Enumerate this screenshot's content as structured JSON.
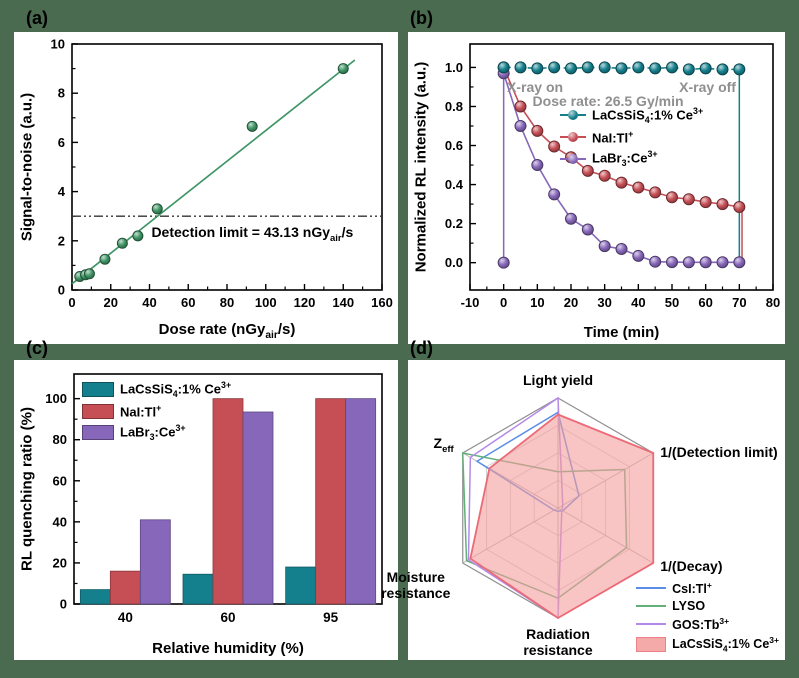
{
  "panel_labels": {
    "a": "(a)",
    "b": "(b)",
    "c": "(c)",
    "d": "(d)"
  },
  "colors": {
    "frame": "#4a6b50",
    "teal": "#15808d",
    "red": "#c54f55",
    "purple": "#8767ba",
    "fit_green": "#3f9565",
    "annotation_gray": "#8f8f8f",
    "radar_blue": "#5b8ee6",
    "radar_green": "#62b078",
    "radar_violet": "#b48ae8",
    "pink_fill": "#f49c9c",
    "pink_edge": "#ec6a76"
  },
  "chart_data": [
    {
      "id": "a",
      "type": "scatter",
      "xlabel": "Dose rate (nGy_{air}/s)",
      "ylabel": "Signal-to-noise (a.u.)",
      "xlim": [
        0,
        160
      ],
      "ylim": [
        0,
        10
      ],
      "xticks": [
        "0",
        "20",
        "40",
        "60",
        "80",
        "100",
        "120",
        "140",
        "160"
      ],
      "yticks": [
        "0",
        "2",
        "4",
        "6",
        "8",
        "10"
      ],
      "points": [
        [
          4,
          0.55
        ],
        [
          7,
          0.62
        ],
        [
          9,
          0.66
        ],
        [
          17,
          1.25
        ],
        [
          26,
          1.9
        ],
        [
          34,
          2.2
        ],
        [
          44,
          3.3
        ],
        [
          93,
          6.65
        ],
        [
          140,
          9.0
        ]
      ],
      "fit_line": {
        "x1": 0,
        "y1": 0.25,
        "x2": 146,
        "y2": 9.35
      },
      "detection_line_y": 3,
      "annotation": {
        "text": "Detection limit = 43.13 nGy_{air}/s",
        "x": 41,
        "y": 2.3
      }
    },
    {
      "id": "b",
      "type": "decay",
      "xlabel": "Time (min)",
      "ylabel": "Normalized RL intensity (a.u.)",
      "xlim": [
        -10,
        80
      ],
      "ylim": [
        -0.14,
        1.12
      ],
      "xticks": [
        "-10",
        "0",
        "10",
        "20",
        "30",
        "40",
        "50",
        "60",
        "70",
        "80"
      ],
      "yticks": [
        "0.0",
        "0.2",
        "0.4",
        "0.6",
        "0.8",
        "1.0"
      ],
      "x": [
        0,
        5,
        10,
        15,
        20,
        25,
        30,
        35,
        40,
        45,
        50,
        55,
        60,
        65,
        70
      ],
      "series": [
        {
          "name": "LaCsSiS_{4}:1% Ce^{3+}",
          "color_key": "teal",
          "dashed": true,
          "values": [
            1.0,
            1.0,
            0.995,
            1.0,
            0.995,
            1.0,
            1.0,
            0.995,
            1.0,
            0.995,
            1.0,
            0.99,
            0.995,
            0.99,
            0.99
          ]
        },
        {
          "name": "NaI:Tl^{+}",
          "color_key": "red",
          "dashed": false,
          "values": [
            1.0,
            0.8,
            0.675,
            0.595,
            0.54,
            0.47,
            0.445,
            0.41,
            0.385,
            0.36,
            0.335,
            0.325,
            0.31,
            0.3,
            0.285
          ]
        },
        {
          "name": "LaBr_{3}:Ce^{3+}",
          "color_key": "purple",
          "dashed": false,
          "values": [
            0.97,
            0.7,
            0.5,
            0.35,
            0.225,
            0.17,
            0.085,
            0.07,
            0.035,
            0.005,
            0.003,
            0.002,
            0.002,
            0.002,
            0.002
          ]
        }
      ],
      "extra_markers": [
        {
          "x": 0,
          "y": 0.0,
          "color_key": "purple"
        }
      ],
      "vlines": [
        {
          "x": 0,
          "y1": 0,
          "y2": 0.97,
          "color_key": "purple"
        },
        {
          "x": 70,
          "y1": 0,
          "y2": 0.99,
          "color_key": "teal"
        },
        {
          "x": 70.8,
          "y1": 0,
          "y2": 0.285,
          "color_key": "red"
        }
      ],
      "annotations": [
        {
          "text": "X-ray on",
          "x": 1,
          "y": 0.895,
          "anchor": "start"
        },
        {
          "text": "X-ray off",
          "x": 69,
          "y": 0.895,
          "anchor": "end"
        },
        {
          "text": "Dose rate: 26.5 Gy/min",
          "x": 31,
          "y": 0.825,
          "anchor": "middle"
        }
      ],
      "legend_pos": {
        "left": 152,
        "top": 74
      }
    },
    {
      "id": "c",
      "type": "bar",
      "xlabel": "Relative humidity (%)",
      "ylabel": "RL quenching ratio (%)",
      "categories": [
        "40",
        "60",
        "95"
      ],
      "ylim": [
        0,
        112
      ],
      "yticks": [
        "0",
        "20",
        "40",
        "60",
        "80",
        "100"
      ],
      "series": [
        {
          "name": "LaCsSiS_{4}:1% Ce^{3+}",
          "color_key": "teal",
          "values": [
            7,
            14.5,
            18
          ]
        },
        {
          "name": "NaI:Tl^{+}",
          "color_key": "red",
          "values": [
            16,
            100,
            100
          ]
        },
        {
          "name": "LaBr_{3}:Ce^{3+}",
          "color_key": "purple",
          "values": [
            41,
            93.5,
            100
          ]
        }
      ],
      "legend_pos": {
        "left": 68,
        "top": 20
      }
    },
    {
      "id": "d",
      "type": "radar",
      "axes": [
        "Light yield",
        "1/(Detection limit)",
        "1/(Decay)",
        "Radiation resistance",
        "Moisture resistance",
        "Z_{eff}"
      ],
      "levels": 4,
      "series": [
        {
          "name": "CsI:Tl^{+}",
          "color_key": "radar_blue",
          "fill": false,
          "values": [
            0.87,
            0.22,
            0.05,
            0.03,
            0.04,
            0.85
          ]
        },
        {
          "name": "LYSO",
          "color_key": "radar_green",
          "fill": false,
          "values": [
            0.33,
            0.7,
            0.72,
            0.82,
            0.96,
            1.0
          ]
        },
        {
          "name": "GOS:Tb^{3+}",
          "color_key": "radar_violet",
          "fill": false,
          "values": [
            1.0,
            0.05,
            0.04,
            1.0,
            0.94,
            0.92
          ]
        },
        {
          "name": "LaCsSiS_{4}:1% Ce^{3+}",
          "color_key": "pink_edge",
          "fill": true,
          "values": [
            0.85,
            1.0,
            1.0,
            1.0,
            0.92,
            0.72
          ]
        }
      ]
    }
  ]
}
